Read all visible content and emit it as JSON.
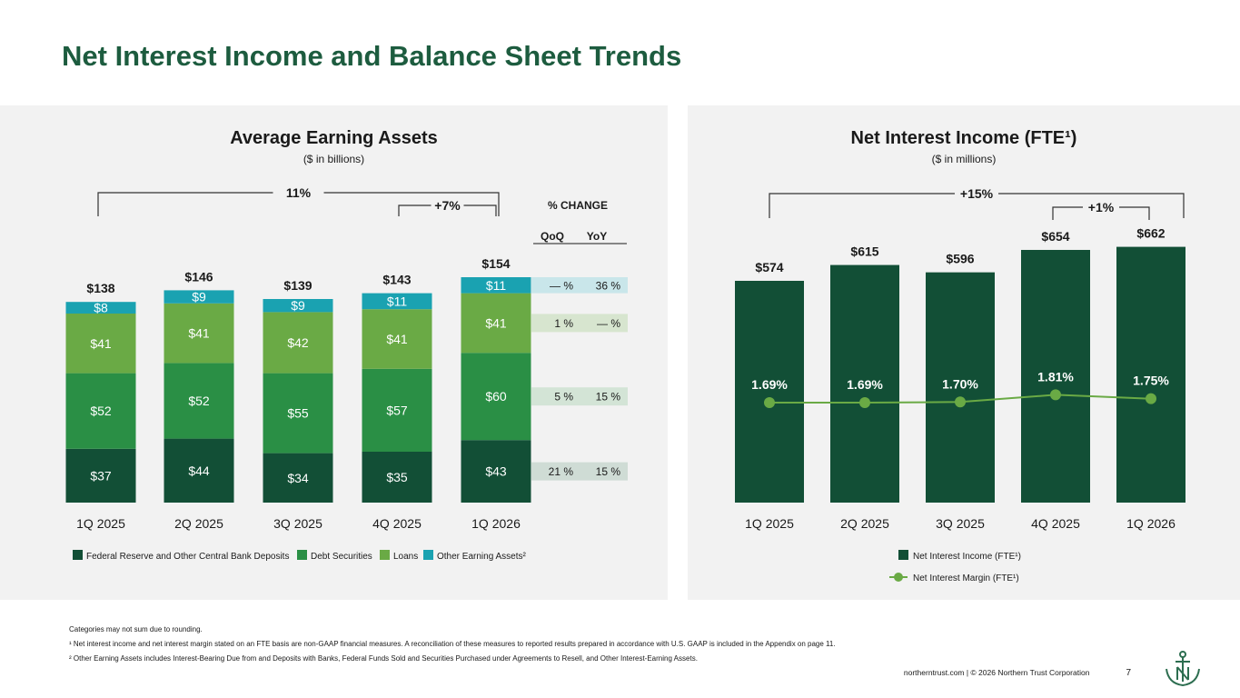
{
  "page": {
    "title": "Net Interest Income and Balance Sheet Trends",
    "footnotes": [
      "Categories may not sum due to rounding.",
      "¹ Net interest income and net interest margin stated on an FTE basis are non-GAAP financial measures. A reconciliation of these measures to reported results prepared in accordance with U.S. GAAP is included in the Appendix on page 11.",
      "² Other Earning Assets includes Interest-Bearing Due from and Deposits with Banks, Federal Funds Sold and Securities Purchased under Agreements to Resell, and Other Interest-Earning Assets."
    ],
    "footer_text": "northerntrust.com | © 2026 Northern Trust Corporation",
    "page_number": "7"
  },
  "colors": {
    "title": "#1d5c3f",
    "fed": "#124f36",
    "debt": "#2a8f45",
    "loans": "#6aaa45",
    "other": "#1aa2b1",
    "nii": "#124f36",
    "nim": "#6aaa45",
    "change_other": "#c9e6ea",
    "change_loans": "#d7e5cf",
    "change_debt": "#d3e4d6",
    "change_fed": "#cfdcd5"
  },
  "chart_data": [
    {
      "type": "bar",
      "stacked": true,
      "title": "Average Earning Assets",
      "subtitle": "($ in billions)",
      "categories": [
        "1Q 2025",
        "2Q 2025",
        "3Q 2025",
        "4Q 2025",
        "1Q 2026"
      ],
      "series": [
        {
          "name": "Federal Reserve and Other Central Bank Deposits",
          "values": [
            37,
            44,
            34,
            35,
            43
          ],
          "labels": [
            "$37",
            "$44",
            "$34",
            "$35",
            "$43"
          ],
          "change_qoq": "21 %",
          "change_yoy": "15 %"
        },
        {
          "name": "Debt Securities",
          "values": [
            52,
            52,
            55,
            57,
            60
          ],
          "labels": [
            "$52",
            "$52",
            "$55",
            "$57",
            "$60"
          ],
          "change_qoq": "5 %",
          "change_yoy": "15 %"
        },
        {
          "name": "Loans",
          "values": [
            41,
            41,
            42,
            41,
            41
          ],
          "labels": [
            "$41",
            "$41",
            "$42",
            "$41",
            "$41"
          ],
          "change_qoq": "1 %",
          "change_yoy": "— %"
        },
        {
          "name": "Other Earning Assets²",
          "values": [
            8,
            9,
            9,
            11,
            11
          ],
          "labels": [
            "$8",
            "$9",
            "$9",
            "$11",
            "$11"
          ],
          "change_qoq": "— %",
          "change_yoy": "36 %"
        }
      ],
      "totals": [
        138,
        146,
        139,
        143,
        154
      ],
      "total_labels": [
        "$138",
        "$146",
        "$139",
        "$143",
        "$154"
      ],
      "ylim": [
        0,
        160
      ],
      "brackets": [
        {
          "label": "11%",
          "from": "1Q 2025",
          "to": "1Q 2026"
        },
        {
          "label": "+7%",
          "from": "4Q 2025",
          "to": "1Q 2026"
        }
      ],
      "change_header": "% CHANGE",
      "change_cols": [
        "QoQ",
        "YoY"
      ]
    },
    {
      "type": "bar",
      "title": "Net Interest Income (FTE¹)",
      "subtitle": "($ in millions)",
      "categories": [
        "1Q 2025",
        "2Q 2025",
        "3Q 2025",
        "4Q 2025",
        "1Q 2026"
      ],
      "series": [
        {
          "name": "Net Interest Income (FTE¹)",
          "type": "bar",
          "values": [
            574,
            615,
            596,
            654,
            662
          ],
          "labels": [
            "$574",
            "$615",
            "$596",
            "$654",
            "$662"
          ]
        },
        {
          "name": "Net Interest Margin (FTE¹)",
          "type": "line",
          "values": [
            1.69,
            1.69,
            1.7,
            1.81,
            1.75
          ],
          "labels": [
            "1.69%",
            "1.69%",
            "1.70%",
            "1.81%",
            "1.75%"
          ]
        }
      ],
      "ylim": [
        0,
        680
      ],
      "nim_ylim": [
        0,
        3.4
      ],
      "brackets": [
        {
          "label": "+15%",
          "from": "1Q 2025",
          "to": "1Q 2026"
        },
        {
          "label": "+1%",
          "from": "4Q 2025",
          "to": "1Q 2026"
        }
      ]
    }
  ]
}
